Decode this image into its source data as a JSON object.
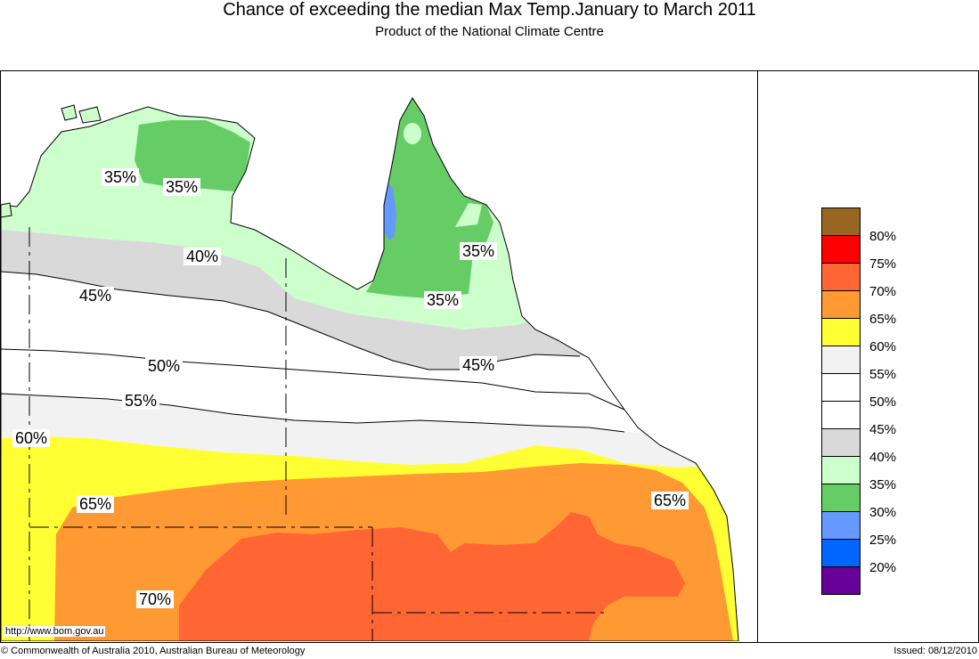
{
  "title": "Chance of exceeding the median Max Temp.January to March 2011",
  "subtitle": "Product of the National Climate Centre",
  "footer": {
    "url": "http://www.bom.gov.au",
    "copyright": "© Commonwealth of Australia 2010, Australian Bureau of Meteorology",
    "issued": "Issued: 08/12/2010"
  },
  "legend": {
    "colors": [
      "#996622",
      "#ff0000",
      "#ff6633",
      "#ff9933",
      "#ffff33",
      "#f2f2f2",
      "#ffffff",
      "#ffffff",
      "#d9d9d9",
      "#ccffcc",
      "#66cc66",
      "#6699ff",
      "#0066ff",
      "#660099"
    ],
    "labels": [
      "80%",
      "75%",
      "70%",
      "65%",
      "60%",
      "55%",
      "50%",
      "45%",
      "40%",
      "35%",
      "30%",
      "25%",
      "20%"
    ]
  },
  "contour_labels": {
    "l35a": "35%",
    "l35b": "35%",
    "l35c": "35%",
    "l35d": "35%",
    "l40": "40%",
    "l45a": "45%",
    "l45b": "45%",
    "l50": "50%",
    "l55": "55%",
    "l60": "60%",
    "l65a": "65%",
    "l65b": "65%",
    "l70": "70%"
  },
  "zone_colors": {
    "z70": "#ff6633",
    "z65": "#ff9933",
    "z60": "#ffff33",
    "z55": "#f2f2f2",
    "z40": "#d9d9d9",
    "z35": "#ccffcc",
    "z30": "#66cc66",
    "z25": "#6699ff"
  }
}
